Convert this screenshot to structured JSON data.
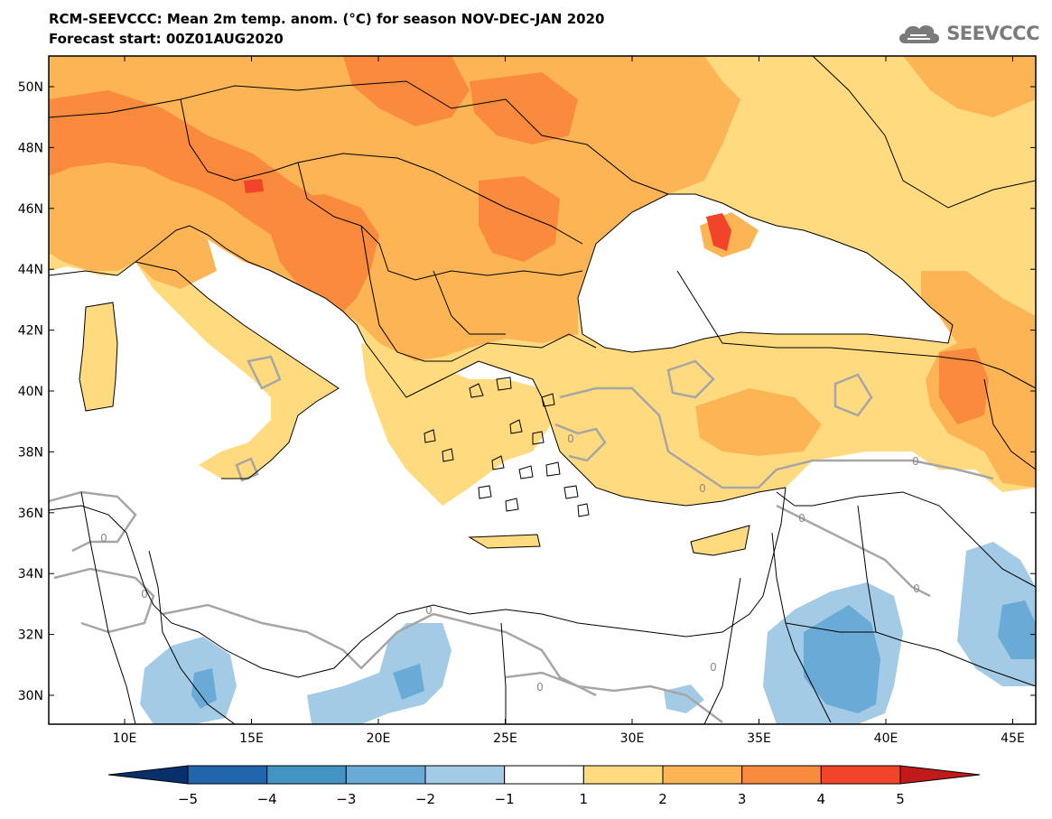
{
  "header": {
    "title_line1": "RCM-SEEVCCC: Mean 2m temp. anom. (°C) for season NOV-DEC-JAN 2020",
    "title_line2": "Forecast start: 00Z01AUG2020",
    "logo_text": "SEEVCCC",
    "logo_icon": "cloud-icon"
  },
  "map": {
    "lat_labels": [
      "50N",
      "48N",
      "46N",
      "44N",
      "42N",
      "40N",
      "38N",
      "36N",
      "34N",
      "32N",
      "30N"
    ],
    "lon_labels": [
      "10E",
      "15E",
      "20E",
      "25E",
      "30E",
      "35E",
      "40E",
      "45E"
    ],
    "contour_labels": [
      "0",
      "0",
      "0",
      "0",
      "0",
      "0",
      "0",
      "0",
      "0",
      "0"
    ],
    "colors": {
      "sea": "#ffffff",
      "pos_1_2": "#ffda7e",
      "pos_2_3": "#fdb455",
      "pos_3_4": "#fa8a3e",
      "pos_4_5": "#f2432b",
      "neg_1_2": "#a3cbe6",
      "neg_2_3": "#6aaad6",
      "contour": "#a6a6a6",
      "border": "#000000"
    }
  },
  "colorbar": {
    "ticks": [
      "−5",
      "−4",
      "−3",
      "−2",
      "−1",
      "1",
      "2",
      "3",
      "4",
      "5"
    ],
    "colors": [
      "#08306b",
      "#2166ac",
      "#4393c3",
      "#6aaad6",
      "#a3cbe6",
      "#ffffff",
      "#ffda7e",
      "#fdb455",
      "#fa8a3e",
      "#f2432b",
      "#c01a1a"
    ]
  }
}
